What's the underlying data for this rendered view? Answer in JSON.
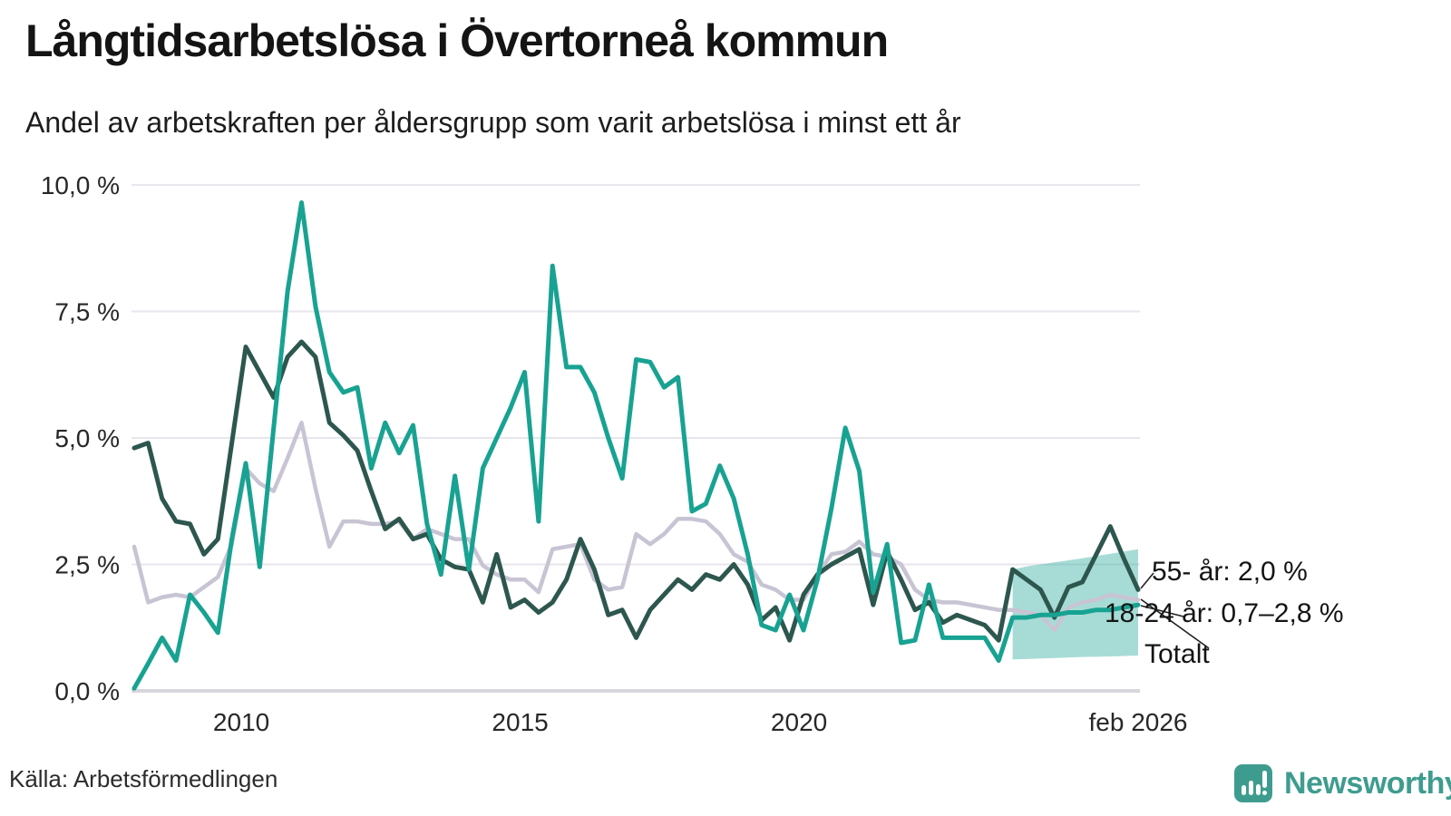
{
  "header": {
    "title": "Långtidsarbetslösa i Övertorneå kommun",
    "subtitle": "Andel av arbetskraften per åldersgrupp som varit arbetslösa i minst ett år"
  },
  "annotations": {
    "a55": "55- år: 2,0 %",
    "a1824": "18-24 år: 0,7–2,8 %",
    "atot": "Totalt"
  },
  "footer": {
    "source": "Källa: Arbetsförmedlingen",
    "brand_name": "Newsworthy",
    "brand_color": "#3e9c8f"
  },
  "colors": {
    "series_55": "#2d574e",
    "series_1824": "#18a292",
    "series_total": "#c8c4d4",
    "band_fill": "#18a292",
    "gridline": "#e8e6ec",
    "zero_axis": "#d8d6dd",
    "text_dark": "#141414"
  },
  "chart_data": {
    "type": "line",
    "title": "Långtidsarbetslösa i Övertorneå kommun",
    "subtitle": "Andel av arbetskraften per åldersgrupp som varit arbetslösa i minst ett år",
    "xlabel": "",
    "ylabel": "",
    "grid": true,
    "legend_position": "end-of-line",
    "xlim": [
      2008.08,
      2026.08
    ],
    "ylim": [
      0,
      10
    ],
    "x_ticks": [
      {
        "value": 2010,
        "label": "2010"
      },
      {
        "value": 2015,
        "label": "2015"
      },
      {
        "value": 2020,
        "label": "2020"
      },
      {
        "value": 2026.08,
        "label": "feb 2026"
      }
    ],
    "y_ticks": [
      {
        "value": 0,
        "label": "0,0 %"
      },
      {
        "value": 2.5,
        "label": "2,5 %"
      },
      {
        "value": 5,
        "label": "5,0 %"
      },
      {
        "value": 7.5,
        "label": "7,5 %"
      },
      {
        "value": 10,
        "label": "10,0 %"
      }
    ],
    "x": [
      2008.08,
      2008.33,
      2008.58,
      2008.83,
      2009.08,
      2009.33,
      2009.58,
      2009.83,
      2010.08,
      2010.33,
      2010.58,
      2010.83,
      2011.08,
      2011.33,
      2011.58,
      2011.83,
      2012.08,
      2012.33,
      2012.58,
      2012.83,
      2013.08,
      2013.33,
      2013.58,
      2013.83,
      2014.08,
      2014.33,
      2014.58,
      2014.83,
      2015.08,
      2015.33,
      2015.58,
      2015.83,
      2016.08,
      2016.33,
      2016.58,
      2016.83,
      2017.08,
      2017.33,
      2017.58,
      2017.83,
      2018.08,
      2018.33,
      2018.58,
      2018.83,
      2019.08,
      2019.33,
      2019.58,
      2019.83,
      2020.08,
      2020.33,
      2020.58,
      2020.83,
      2021.08,
      2021.33,
      2021.58,
      2021.83,
      2022.08,
      2022.33,
      2022.58,
      2022.83,
      2023.08,
      2023.33,
      2023.58,
      2023.83,
      2024.08,
      2024.33,
      2024.58,
      2024.83,
      2025.08,
      2025.33,
      2025.58,
      2025.83,
      2026.08
    ],
    "series": [
      {
        "name": "55- år",
        "color": "#2d574e",
        "stroke_width": 5,
        "end_label": "55- år: 2,0 %",
        "end_value": 2.0,
        "values": [
          4.8,
          4.9,
          3.8,
          3.35,
          3.3,
          2.7,
          3.0,
          4.9,
          6.8,
          6.3,
          5.8,
          6.6,
          6.9,
          6.6,
          5.3,
          5.05,
          4.75,
          3.95,
          3.2,
          3.4,
          3.0,
          3.1,
          2.6,
          2.45,
          2.4,
          1.75,
          2.7,
          1.65,
          1.8,
          1.55,
          1.75,
          2.2,
          3.0,
          2.4,
          1.5,
          1.6,
          1.05,
          1.6,
          1.9,
          2.2,
          2.0,
          2.3,
          2.2,
          2.5,
          2.1,
          1.4,
          1.65,
          1.0,
          1.9,
          2.3,
          2.5,
          2.65,
          2.8,
          1.7,
          2.75,
          2.2,
          1.6,
          1.75,
          1.35,
          1.5,
          1.4,
          1.3,
          1.0,
          2.4,
          2.2,
          2.0,
          1.45,
          2.05,
          2.15,
          2.7,
          3.25,
          2.6,
          2.0
        ]
      },
      {
        "name": "18-24 år",
        "color": "#18a292",
        "stroke_width": 5,
        "end_label": "18-24 år: 0,7–2,8 %",
        "end_range": [
          0.7,
          2.8
        ],
        "values": [
          0.05,
          0.54,
          1.05,
          0.6,
          1.9,
          1.55,
          1.15,
          3.0,
          4.5,
          2.45,
          5.2,
          7.9,
          9.65,
          7.6,
          6.3,
          5.9,
          6.0,
          4.4,
          5.3,
          4.7,
          5.25,
          3.3,
          2.3,
          4.25,
          2.4,
          4.4,
          5.0,
          5.6,
          6.3,
          3.35,
          8.4,
          6.4,
          6.4,
          5.9,
          5.0,
          4.2,
          6.55,
          6.5,
          6.0,
          6.2,
          3.55,
          3.7,
          4.45,
          3.8,
          2.7,
          1.3,
          1.2,
          1.9,
          1.2,
          2.2,
          3.6,
          5.2,
          4.35,
          1.95,
          2.9,
          0.95,
          1.0,
          2.1,
          1.05,
          1.05,
          1.05,
          1.05,
          0.6,
          1.45,
          1.45,
          1.5,
          1.5,
          1.55,
          1.55,
          1.6,
          1.6,
          1.65,
          1.7
        ]
      },
      {
        "name": "Totalt",
        "color": "#c8c4d4",
        "stroke_width": 4.5,
        "end_label": "Totalt",
        "end_value": 1.8,
        "values": [
          2.85,
          1.75,
          1.85,
          1.9,
          1.85,
          2.05,
          2.25,
          2.9,
          4.4,
          4.1,
          3.95,
          4.6,
          5.3,
          4.0,
          2.85,
          3.35,
          3.35,
          3.3,
          3.3,
          3.35,
          3.0,
          3.2,
          3.1,
          3.0,
          3.0,
          2.48,
          2.3,
          2.2,
          2.2,
          1.95,
          2.8,
          2.85,
          2.9,
          2.2,
          2.0,
          2.05,
          3.1,
          2.9,
          3.1,
          3.4,
          3.4,
          3.35,
          3.1,
          2.7,
          2.55,
          2.1,
          2.0,
          1.8,
          1.8,
          2.3,
          2.7,
          2.75,
          2.95,
          2.7,
          2.65,
          2.5,
          2.0,
          1.8,
          1.75,
          1.75,
          1.7,
          1.65,
          1.6,
          1.6,
          1.55,
          1.5,
          1.2,
          1.65,
          1.75,
          1.8,
          1.9,
          1.85,
          1.8
        ]
      }
    ],
    "uncertainty_band": {
      "series": "18-24 år",
      "color": "#18a292",
      "opacity": 0.38,
      "x": [
        2023.83,
        2024.08,
        2024.58,
        2025.08,
        2025.58,
        2026.08
      ],
      "low": [
        0.62,
        0.63,
        0.65,
        0.67,
        0.68,
        0.7
      ],
      "high": [
        2.4,
        2.46,
        2.54,
        2.62,
        2.71,
        2.8
      ]
    }
  }
}
